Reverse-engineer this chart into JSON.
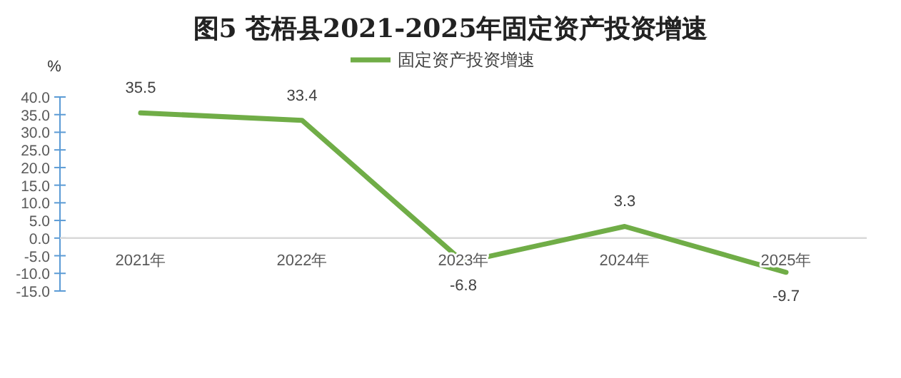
{
  "chart_data": {
    "type": "line",
    "title": "图5  苍梧县2021-2025年固定资产投资增速",
    "ylabel": "%",
    "categories": [
      "2021年",
      "2022年",
      "2023年",
      "2024年",
      "2025年"
    ],
    "series": [
      {
        "name": "固定资产投资增速",
        "color": "#70ad47",
        "values": [
          35.5,
          33.4,
          -6.8,
          3.3,
          -9.7
        ]
      }
    ],
    "ylim": [
      -15,
      40
    ],
    "yticks": [
      {
        "value": -15,
        "label": "-15.0"
      },
      {
        "value": -10,
        "label": "-10.0"
      },
      {
        "value": -5,
        "label": "-5.0"
      },
      {
        "value": 0,
        "label": "0.0"
      },
      {
        "value": 5,
        "label": "5.0"
      },
      {
        "value": 10,
        "label": "10.0"
      },
      {
        "value": 15,
        "label": "15.0"
      },
      {
        "value": 20,
        "label": "20.0"
      },
      {
        "value": 25,
        "label": "25.0"
      },
      {
        "value": 30,
        "label": "30.0"
      },
      {
        "value": 35,
        "label": "35.0"
      },
      {
        "value": 40,
        "label": "40.0"
      }
    ],
    "data_labels": true,
    "legend": "top",
    "grid": false,
    "marker": "none",
    "line_style": "solid"
  }
}
